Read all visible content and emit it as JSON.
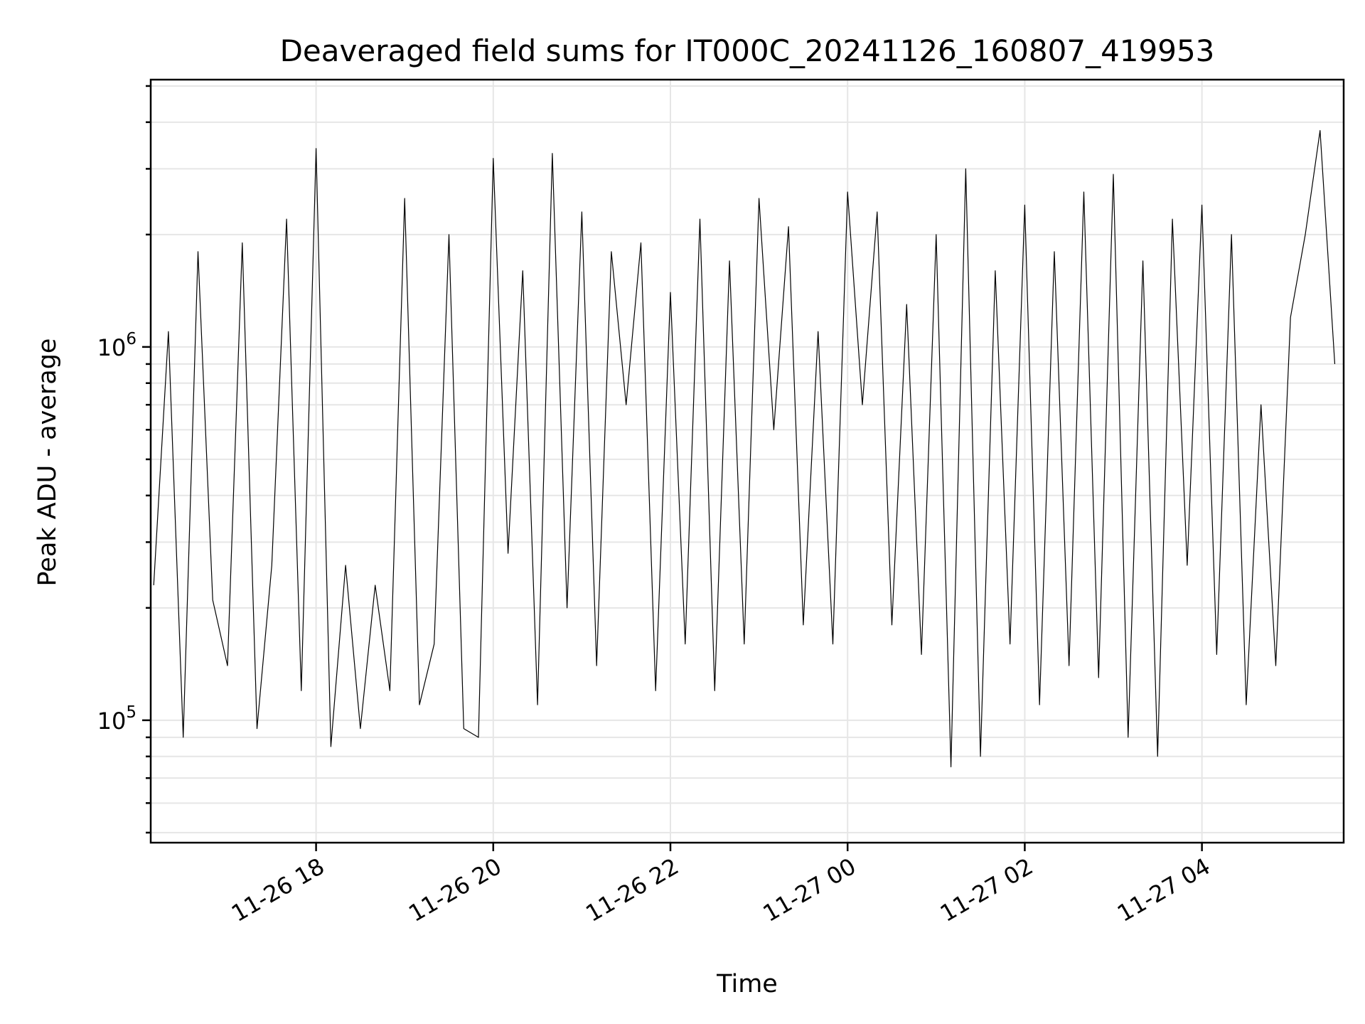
{
  "chart_data": {
    "type": "line",
    "title": "Deaveraged field sums for IT000C_20241126_160807_419953",
    "xlabel": "Time",
    "ylabel": "Peak ADU - average",
    "y_scale": "log",
    "ylim": [
      47000,
      5200000
    ],
    "xlim": [
      "2024-11-26 16:08",
      "2024-11-27 05:36"
    ],
    "x_ticks": [
      {
        "t": "2024-11-26 18:00",
        "label": "11-26 18"
      },
      {
        "t": "2024-11-26 20:00",
        "label": "11-26 20"
      },
      {
        "t": "2024-11-26 22:00",
        "label": "11-26 22"
      },
      {
        "t": "2024-11-27 00:00",
        "label": "11-27 00"
      },
      {
        "t": "2024-11-27 02:00",
        "label": "11-27 02"
      },
      {
        "t": "2024-11-27 04:00",
        "label": "11-27 04"
      }
    ],
    "y_ticks": [
      {
        "value": 100000,
        "base": "10",
        "exp": "5"
      },
      {
        "value": 1000000,
        "base": "10",
        "exp": "6"
      }
    ],
    "grid": true,
    "line_color": "#000000",
    "series": [
      {
        "x": [
          "2024-11-26 16:10",
          "2024-11-26 16:20",
          "2024-11-26 16:30",
          "2024-11-26 16:40",
          "2024-11-26 16:50",
          "2024-11-26 17:00",
          "2024-11-26 17:10",
          "2024-11-26 17:20",
          "2024-11-26 17:30",
          "2024-11-26 17:40",
          "2024-11-26 17:50",
          "2024-11-26 18:00",
          "2024-11-26 18:10",
          "2024-11-26 18:20",
          "2024-11-26 18:30",
          "2024-11-26 18:40",
          "2024-11-26 18:50",
          "2024-11-26 19:00",
          "2024-11-26 19:10",
          "2024-11-26 19:20",
          "2024-11-26 19:30",
          "2024-11-26 19:40",
          "2024-11-26 19:50",
          "2024-11-26 20:00",
          "2024-11-26 20:10",
          "2024-11-26 20:20",
          "2024-11-26 20:30",
          "2024-11-26 20:40",
          "2024-11-26 20:50",
          "2024-11-26 21:00",
          "2024-11-26 21:10",
          "2024-11-26 21:20",
          "2024-11-26 21:30",
          "2024-11-26 21:40",
          "2024-11-26 21:50",
          "2024-11-26 22:00",
          "2024-11-26 22:10",
          "2024-11-26 22:20",
          "2024-11-26 22:30",
          "2024-11-26 22:40",
          "2024-11-26 22:50",
          "2024-11-26 23:00",
          "2024-11-26 23:10",
          "2024-11-26 23:20",
          "2024-11-26 23:30",
          "2024-11-26 23:40",
          "2024-11-26 23:50",
          "2024-11-27 00:00",
          "2024-11-27 00:10",
          "2024-11-27 00:20",
          "2024-11-27 00:30",
          "2024-11-27 00:40",
          "2024-11-27 00:50",
          "2024-11-27 01:00",
          "2024-11-27 01:10",
          "2024-11-27 01:20",
          "2024-11-27 01:30",
          "2024-11-27 01:40",
          "2024-11-27 01:50",
          "2024-11-27 02:00",
          "2024-11-27 02:10",
          "2024-11-27 02:20",
          "2024-11-27 02:30",
          "2024-11-27 02:40",
          "2024-11-27 02:50",
          "2024-11-27 03:00",
          "2024-11-27 03:10",
          "2024-11-27 03:20",
          "2024-11-27 03:30",
          "2024-11-27 03:40",
          "2024-11-27 03:50",
          "2024-11-27 04:00",
          "2024-11-27 04:10",
          "2024-11-27 04:20",
          "2024-11-27 04:30",
          "2024-11-27 04:40",
          "2024-11-27 04:50",
          "2024-11-27 05:00",
          "2024-11-27 05:10",
          "2024-11-27 05:20",
          "2024-11-27 05:30"
        ],
        "y": [
          230000,
          1100000,
          90000,
          1800000,
          210000,
          140000,
          1900000,
          95000,
          260000,
          2200000,
          120000,
          3400000,
          85000,
          260000,
          95000,
          230000,
          120000,
          2500000,
          110000,
          160000,
          2000000,
          95000,
          90000,
          3200000,
          280000,
          1600000,
          110000,
          3300000,
          200000,
          2300000,
          140000,
          1800000,
          700000,
          1900000,
          120000,
          1400000,
          160000,
          2200000,
          120000,
          1700000,
          160000,
          2500000,
          600000,
          2100000,
          180000,
          1100000,
          160000,
          2600000,
          700000,
          2300000,
          180000,
          1300000,
          150000,
          2000000,
          75000,
          3000000,
          80000,
          1600000,
          160000,
          2400000,
          110000,
          1800000,
          140000,
          2600000,
          130000,
          2900000,
          90000,
          1700000,
          80000,
          2200000,
          260000,
          2400000,
          150000,
          2000000,
          110000,
          700000,
          140000,
          1200000,
          2000000,
          3800000,
          900000
        ]
      }
    ]
  }
}
